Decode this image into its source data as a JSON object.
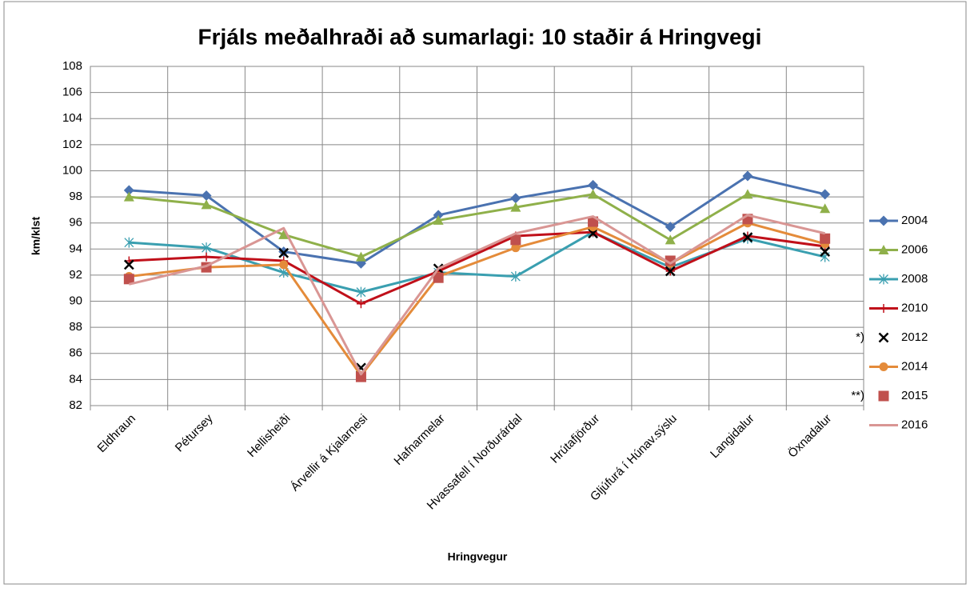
{
  "chart_data": {
    "type": "line",
    "title": "Frjáls meðalhraði að sumarlagi: 10 staðir á Hringvegi",
    "x_label": "Hringvegur",
    "y_label": "km/klst",
    "categories": [
      "Eldhraun",
      "Pétursey",
      "Hellisheiði",
      "Árvellir á Kjalarnesi",
      "Hafnarmelar",
      "Hvassafell í Norðurárdal",
      "Hrútafjörður",
      "Gljúfurá í Húnav.sýslu",
      "Langidalur",
      "Öxnadalur"
    ],
    "ylim": [
      82,
      108
    ],
    "yticks": [
      82,
      84,
      86,
      88,
      90,
      92,
      94,
      96,
      98,
      100,
      102,
      104,
      106,
      108
    ],
    "grid": true,
    "legend": "right",
    "series": [
      {
        "name": "2004",
        "color": "#4a72b0",
        "marker": "diamond",
        "line": true,
        "values": [
          98.5,
          98.1,
          93.8,
          92.9,
          96.6,
          97.9,
          98.9,
          95.7,
          99.6,
          98.2
        ]
      },
      {
        "name": "2006",
        "color": "#8fb04a",
        "marker": "triangle",
        "line": true,
        "values": [
          98.0,
          97.4,
          95.1,
          93.4,
          96.2,
          97.2,
          98.2,
          94.7,
          98.2,
          97.1
        ]
      },
      {
        "name": "2008",
        "color": "#3a9fb0",
        "marker": "star",
        "line": true,
        "values": [
          94.5,
          94.1,
          92.2,
          90.7,
          92.2,
          91.9,
          95.3,
          92.6,
          94.8,
          93.4
        ]
      },
      {
        "name": "2010",
        "color": "#c0101a",
        "marker": "plus",
        "line": true,
        "values": [
          93.1,
          93.4,
          93.1,
          89.8,
          92.3,
          95.0,
          95.3,
          92.3,
          95.0,
          94.2
        ]
      },
      {
        "name": "2012",
        "legend_prefix": "*)",
        "color": "#000000",
        "marker": "x",
        "line": false,
        "values": [
          92.8,
          null,
          93.7,
          84.9,
          92.5,
          null,
          95.2,
          92.3,
          94.9,
          93.8
        ]
      },
      {
        "name": "2014",
        "color": "#e48b3a",
        "marker": "circle",
        "line": true,
        "values": [
          91.9,
          92.6,
          92.8,
          84.3,
          91.9,
          94.1,
          95.7,
          92.9,
          96.0,
          94.4
        ]
      },
      {
        "name": "2015",
        "legend_prefix": "**)",
        "color": "#c0504d",
        "marker": "square",
        "line": false,
        "values": [
          91.7,
          92.6,
          null,
          84.2,
          91.8,
          94.7,
          96.1,
          93.1,
          96.3,
          94.8
        ]
      },
      {
        "name": "2016",
        "color": "#d99694",
        "marker": "none",
        "line": true,
        "values": [
          91.3,
          92.7,
          95.6,
          84.4,
          92.5,
          95.2,
          96.5,
          92.9,
          96.6,
          95.2
        ]
      }
    ]
  }
}
